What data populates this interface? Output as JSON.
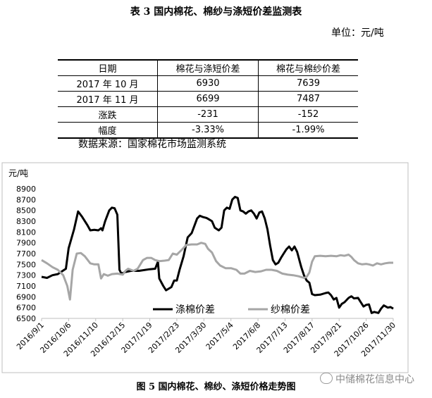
{
  "table": {
    "title": "表 3  国内棉花、棉纱与涤短价差监测表",
    "unit": "单位：元/吨",
    "headers": [
      "日期",
      "棉花与涤短价差",
      "棉花与棉纱价差"
    ],
    "rows": [
      [
        "2017 年 10 月",
        "6930",
        "7639"
      ],
      [
        "2017 年 11 月",
        "6699",
        "7487"
      ],
      [
        "涨跌",
        "-231",
        "-152"
      ],
      [
        "幅度",
        "-3.33%",
        "-1.99%"
      ]
    ],
    "source": "数据来源：国家棉花市场监测系统"
  },
  "figure": {
    "caption": "图 5  国内棉花、棉纱、涤短价格走势图"
  },
  "watermark": "中储棉花信息中心",
  "chart_data": {
    "type": "line",
    "ylabel": "元/吨",
    "ylim": [
      6500,
      8900
    ],
    "yticks": [
      6500,
      6700,
      6900,
      7100,
      7300,
      7500,
      7700,
      7900,
      8100,
      8300,
      8500,
      8700,
      8900
    ],
    "x_tick_labels": [
      "2016/9/1",
      "2016/10/6",
      "2016/11/10",
      "2016/12/15",
      "2017/1/19",
      "2017/2/23",
      "2017/3/30",
      "2017/5/4",
      "2017/6/8",
      "2017/7/13",
      "2017/8/17",
      "2017/9/21",
      "2017/10/26",
      "2017/11/30"
    ],
    "legend_position": "bottom-center",
    "series": [
      {
        "name": "涤棉价差",
        "color": "#000000",
        "points": [
          [
            0,
            7270
          ],
          [
            0.2,
            7250
          ],
          [
            0.4,
            7300
          ],
          [
            0.6,
            7320
          ],
          [
            0.9,
            7420
          ],
          [
            1.0,
            7800
          ],
          [
            1.2,
            8150
          ],
          [
            1.35,
            8480
          ],
          [
            1.5,
            8380
          ],
          [
            1.7,
            8220
          ],
          [
            1.8,
            8130
          ],
          [
            1.95,
            8140
          ],
          [
            2.1,
            8130
          ],
          [
            2.2,
            8170
          ],
          [
            2.25,
            8130
          ],
          [
            2.35,
            8300
          ],
          [
            2.5,
            8500
          ],
          [
            2.6,
            8550
          ],
          [
            2.7,
            8540
          ],
          [
            2.8,
            8420
          ],
          [
            2.88,
            7400
          ],
          [
            2.95,
            7330
          ],
          [
            3.1,
            7360
          ],
          [
            3.3,
            7380
          ],
          [
            3.6,
            7380
          ],
          [
            4.0,
            7410
          ],
          [
            4.2,
            7420
          ],
          [
            4.3,
            7550
          ],
          [
            4.35,
            7240
          ],
          [
            4.5,
            7100
          ],
          [
            4.6,
            7020
          ],
          [
            4.8,
            7080
          ],
          [
            4.9,
            7200
          ],
          [
            5.0,
            7200
          ],
          [
            5.1,
            7400
          ],
          [
            5.25,
            7650
          ],
          [
            5.4,
            8000
          ],
          [
            5.55,
            8080
          ],
          [
            5.75,
            8350
          ],
          [
            5.85,
            8400
          ],
          [
            5.95,
            8380
          ],
          [
            6.1,
            8360
          ],
          [
            6.2,
            8330
          ],
          [
            6.3,
            8300
          ],
          [
            6.4,
            8180
          ],
          [
            6.55,
            8130
          ],
          [
            6.65,
            8180
          ],
          [
            6.75,
            8500
          ],
          [
            6.85,
            8550
          ],
          [
            6.95,
            8530
          ],
          [
            7.05,
            8700
          ],
          [
            7.15,
            8750
          ],
          [
            7.25,
            8730
          ],
          [
            7.35,
            8500
          ],
          [
            7.45,
            8480
          ],
          [
            7.55,
            8440
          ],
          [
            7.65,
            8480
          ],
          [
            7.75,
            8500
          ],
          [
            7.85,
            8440
          ],
          [
            7.95,
            8350
          ],
          [
            8.05,
            8460
          ],
          [
            8.15,
            8480
          ],
          [
            8.25,
            8350
          ],
          [
            8.35,
            8150
          ],
          [
            8.45,
            7850
          ],
          [
            8.55,
            7580
          ],
          [
            8.65,
            7500
          ],
          [
            8.75,
            7530
          ],
          [
            8.85,
            7620
          ],
          [
            8.95,
            7700
          ],
          [
            9.05,
            7780
          ],
          [
            9.15,
            7830
          ],
          [
            9.25,
            7760
          ],
          [
            9.35,
            7830
          ],
          [
            9.45,
            7730
          ],
          [
            9.55,
            7540
          ],
          [
            9.6,
            7450
          ],
          [
            9.7,
            7300
          ],
          [
            9.8,
            7200
          ],
          [
            9.9,
            7160
          ],
          [
            10.0,
            6950
          ],
          [
            10.1,
            6930
          ],
          [
            10.3,
            6940
          ],
          [
            10.5,
            6970
          ],
          [
            10.6,
            6980
          ],
          [
            10.7,
            6930
          ],
          [
            10.8,
            6850
          ],
          [
            10.9,
            6880
          ],
          [
            11.0,
            6700
          ],
          [
            11.1,
            6770
          ],
          [
            11.2,
            6800
          ],
          [
            11.35,
            6880
          ],
          [
            11.45,
            6910
          ],
          [
            11.55,
            6870
          ],
          [
            11.7,
            6880
          ],
          [
            11.8,
            6800
          ],
          [
            11.9,
            6720
          ],
          [
            12.0,
            6750
          ],
          [
            12.1,
            6760
          ],
          [
            12.2,
            6600
          ],
          [
            12.3,
            6620
          ],
          [
            12.45,
            6600
          ],
          [
            12.55,
            6680
          ],
          [
            12.65,
            6740
          ],
          [
            12.8,
            6700
          ],
          [
            12.9,
            6710
          ],
          [
            13.0,
            6680
          ]
        ]
      },
      {
        "name": "纱棉价差",
        "color": "#a6a6a6",
        "points": [
          [
            0,
            7580
          ],
          [
            0.2,
            7520
          ],
          [
            0.4,
            7450
          ],
          [
            0.6,
            7400
          ],
          [
            0.8,
            7300
          ],
          [
            0.95,
            7100
          ],
          [
            1.05,
            6850
          ],
          [
            1.15,
            7400
          ],
          [
            1.3,
            7700
          ],
          [
            1.45,
            7710
          ],
          [
            1.6,
            7650
          ],
          [
            1.8,
            7520
          ],
          [
            1.95,
            7500
          ],
          [
            2.1,
            7500
          ],
          [
            2.2,
            7240
          ],
          [
            2.3,
            7320
          ],
          [
            2.45,
            7290
          ],
          [
            2.6,
            7320
          ],
          [
            2.8,
            7330
          ],
          [
            3.0,
            7310
          ],
          [
            3.1,
            7380
          ],
          [
            3.2,
            7420
          ],
          [
            3.4,
            7380
          ],
          [
            3.55,
            7420
          ],
          [
            3.75,
            7580
          ],
          [
            3.9,
            7620
          ],
          [
            4.05,
            7620
          ],
          [
            4.2,
            7580
          ],
          [
            4.35,
            7560
          ],
          [
            4.55,
            7570
          ],
          [
            4.7,
            7580
          ],
          [
            4.85,
            7700
          ],
          [
            5.0,
            7680
          ],
          [
            5.2,
            7780
          ],
          [
            5.35,
            7860
          ],
          [
            5.55,
            7870
          ],
          [
            5.75,
            7870
          ],
          [
            5.9,
            7900
          ],
          [
            6.05,
            7880
          ],
          [
            6.15,
            7790
          ],
          [
            6.3,
            7720
          ],
          [
            6.45,
            7560
          ],
          [
            6.6,
            7480
          ],
          [
            6.8,
            7430
          ],
          [
            7.0,
            7430
          ],
          [
            7.2,
            7400
          ],
          [
            7.35,
            7330
          ],
          [
            7.5,
            7330
          ],
          [
            7.7,
            7380
          ],
          [
            7.9,
            7360
          ],
          [
            8.1,
            7370
          ],
          [
            8.3,
            7400
          ],
          [
            8.5,
            7400
          ],
          [
            8.7,
            7380
          ],
          [
            8.9,
            7330
          ],
          [
            9.1,
            7310
          ],
          [
            9.3,
            7300
          ],
          [
            9.5,
            7280
          ],
          [
            9.7,
            7250
          ],
          [
            9.8,
            7270
          ],
          [
            9.9,
            7350
          ],
          [
            10.0,
            7550
          ],
          [
            10.1,
            7650
          ],
          [
            10.3,
            7660
          ],
          [
            10.5,
            7650
          ],
          [
            10.7,
            7660
          ],
          [
            10.9,
            7650
          ],
          [
            11.05,
            7670
          ],
          [
            11.2,
            7660
          ],
          [
            11.35,
            7680
          ],
          [
            11.45,
            7640
          ],
          [
            11.55,
            7580
          ],
          [
            11.7,
            7520
          ],
          [
            11.85,
            7500
          ],
          [
            12.0,
            7510
          ],
          [
            12.1,
            7500
          ],
          [
            12.25,
            7480
          ],
          [
            12.4,
            7520
          ],
          [
            12.55,
            7500
          ],
          [
            12.7,
            7520
          ],
          [
            12.85,
            7530
          ],
          [
            13.0,
            7530
          ]
        ]
      }
    ]
  }
}
